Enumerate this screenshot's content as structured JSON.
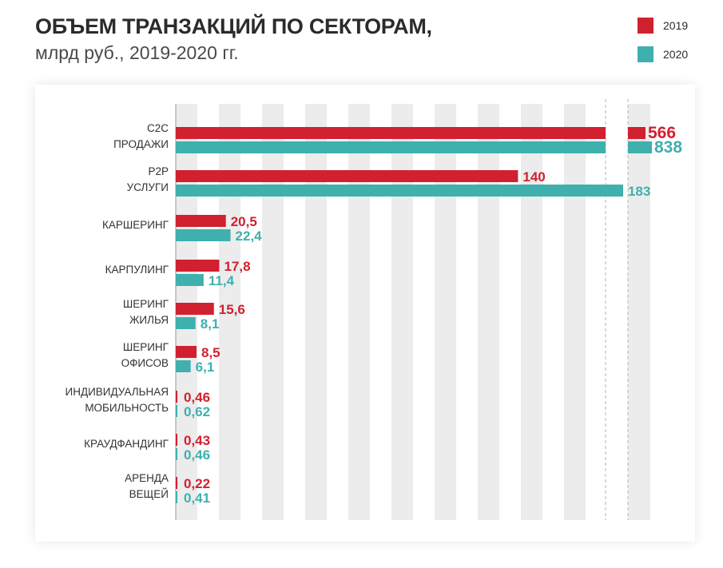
{
  "header": {
    "title": "ОБЪЕМ ТРАНЗАКЦИЙ ПО СЕКТОРАМ,",
    "subtitle": "млрд руб., 2019-2020 гг."
  },
  "legend": [
    {
      "label": "2019",
      "color": "#d1202f"
    },
    {
      "label": "2020",
      "color": "#3fb0ae"
    }
  ],
  "chart_data": {
    "type": "bar",
    "orientation": "horizontal",
    "axis_break": true,
    "grid": "alternating vertical bands",
    "categories": [
      [
        "C2C",
        "ПРОДАЖИ"
      ],
      [
        "P2P",
        "УСЛУГИ"
      ],
      [
        "КАРШЕРИНГ"
      ],
      [
        "КАРПУЛИНГ"
      ],
      [
        "ШЕРИНГ",
        "ЖИЛЬЯ"
      ],
      [
        "ШЕРИНГ",
        "ОФИСОВ"
      ],
      [
        "ИНДИВИДУАЛЬНАЯ",
        "МОБИЛЬНОСТЬ"
      ],
      [
        "КРАУДФАНДИНГ"
      ],
      [
        "АРЕНДА",
        "ВЕЩЕЙ"
      ]
    ],
    "series": [
      {
        "name": "2019",
        "color": "#d1202f",
        "values": [
          566,
          140,
          20.5,
          17.8,
          15.6,
          8.5,
          0.46,
          0.43,
          0.22
        ],
        "labels": [
          "566",
          "140",
          "20,5",
          "17,8",
          "15,6",
          "8,5",
          "0,46",
          "0,43",
          "0,22"
        ]
      },
      {
        "name": "2020",
        "color": "#3fb0ae",
        "values": [
          838,
          183,
          22.4,
          11.4,
          8.1,
          6.1,
          0.62,
          0.46,
          0.41
        ],
        "labels": [
          "838",
          "183",
          "22,4",
          "11,4",
          "8,1",
          "6,1",
          "0,62",
          "0,46",
          "0,41"
        ]
      }
    ]
  }
}
